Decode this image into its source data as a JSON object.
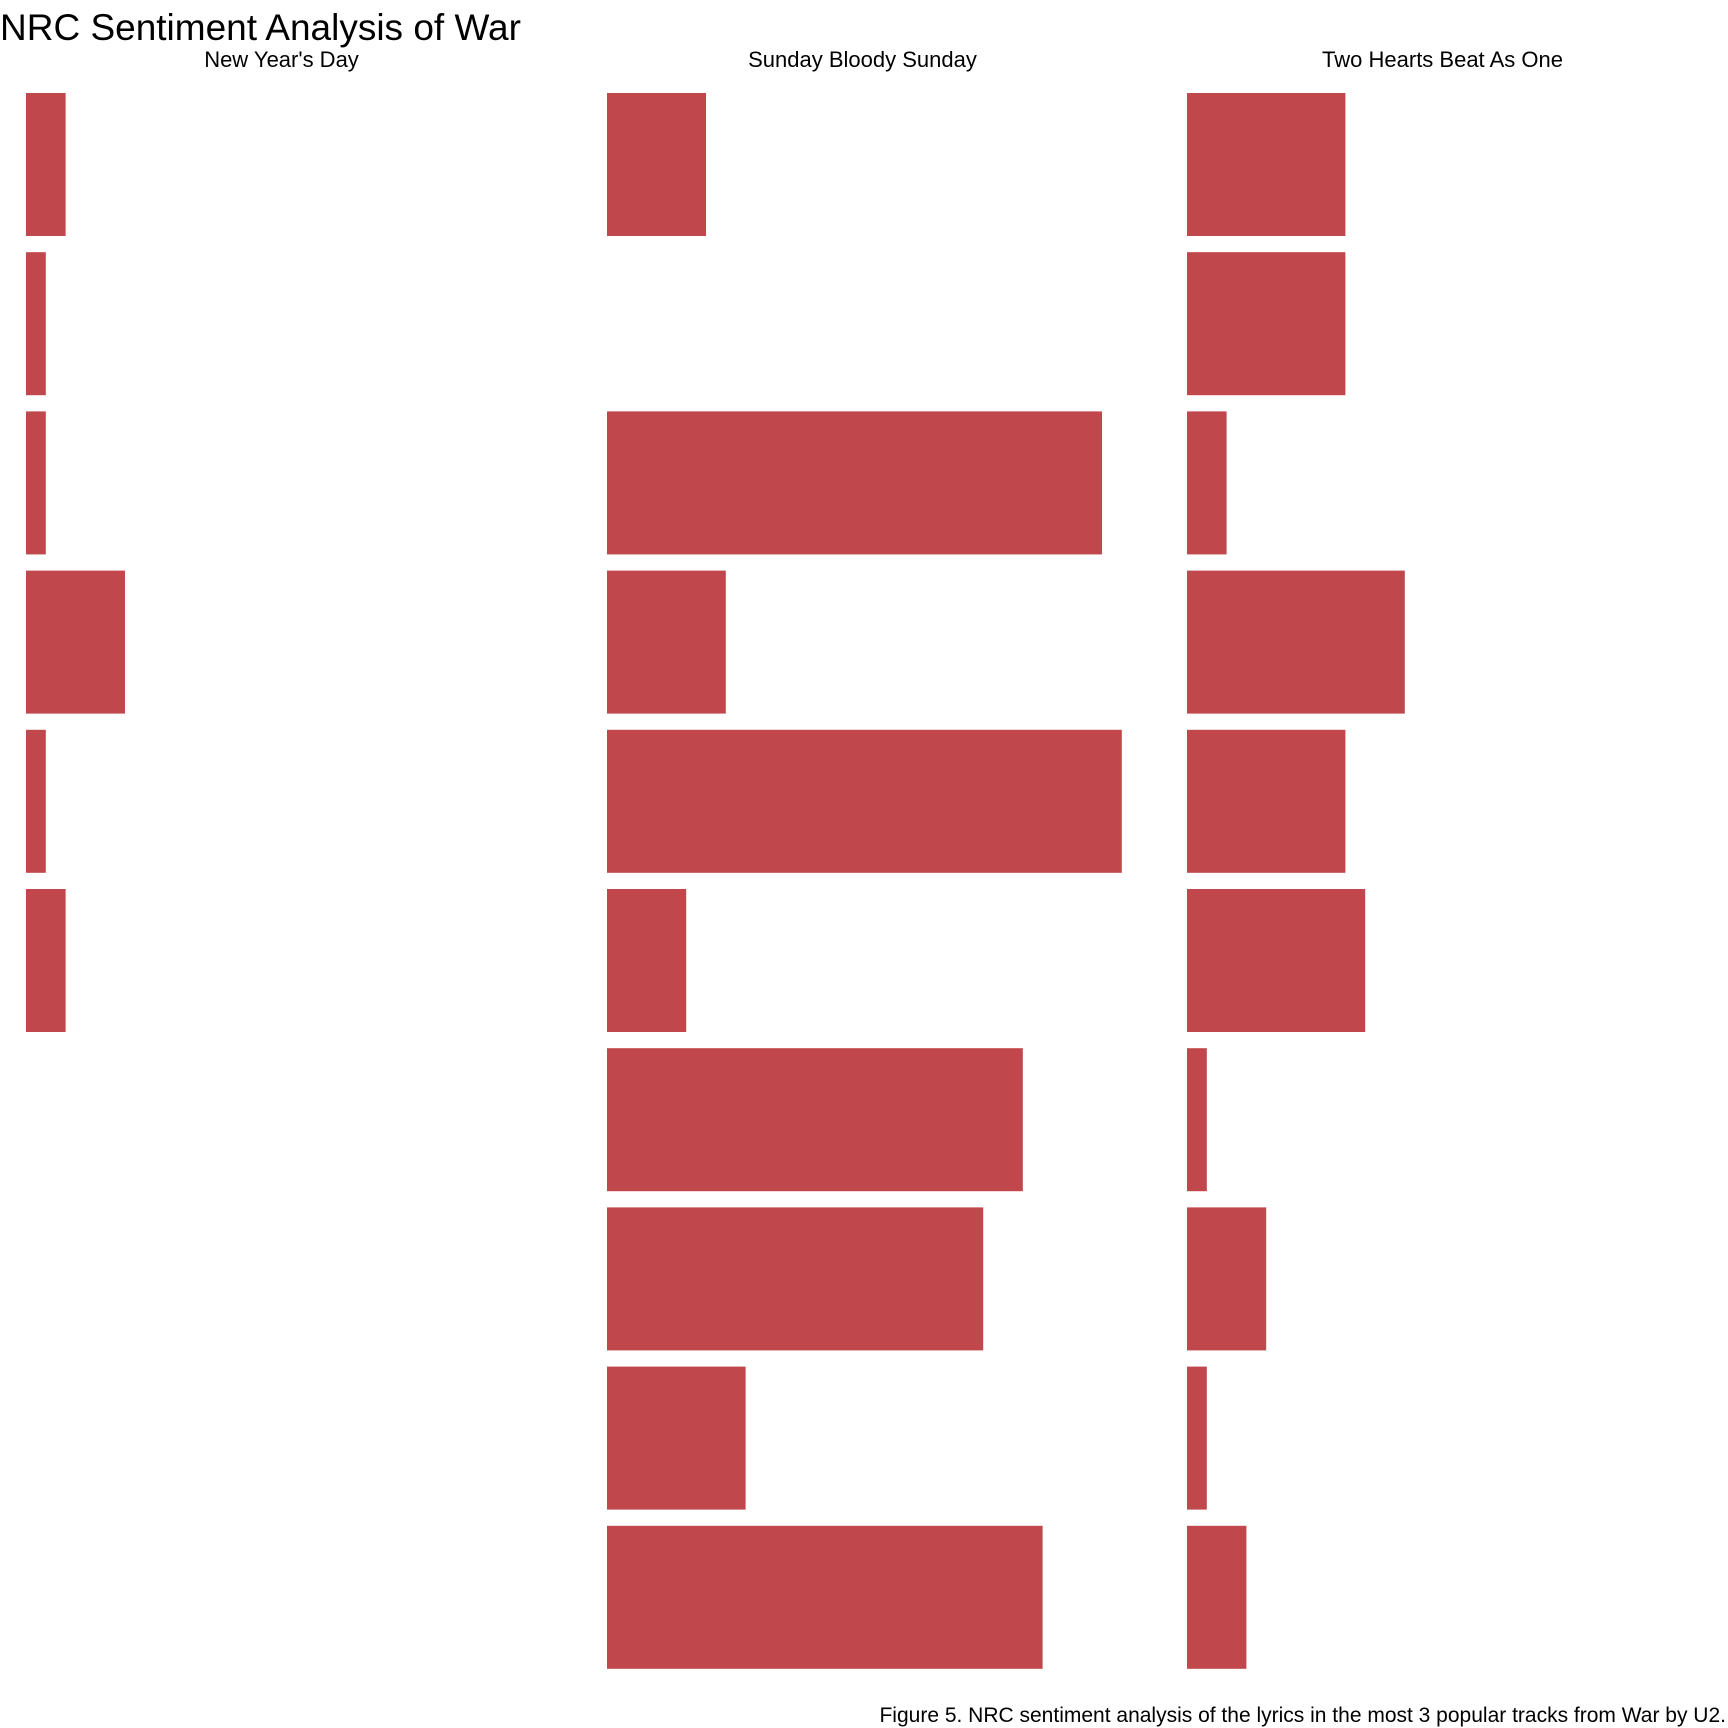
{
  "chart_data": {
    "type": "bar",
    "title": "NRC Sentiment Analysis of War",
    "caption": "Figure 5. NRC sentiment analysis of the lyrics in the most 3 popular tracks from War by U2.",
    "bar_color": "#c0474b",
    "orientation": "horizontal",
    "axes_visible": false,
    "xlim": [
      0,
      26
    ],
    "panels": [
      {
        "name": "New Year's Day",
        "values": [
          2,
          1,
          1,
          5,
          1,
          2,
          0,
          0,
          0,
          0
        ]
      },
      {
        "name": "Sunday Bloody Sunday",
        "values": [
          5,
          0,
          25,
          6,
          26,
          4,
          21,
          19,
          7,
          22
        ]
      },
      {
        "name": "Two Hearts Beat As One",
        "values": [
          8,
          8,
          2,
          11,
          8,
          9,
          1,
          4,
          1,
          3
        ]
      }
    ]
  }
}
